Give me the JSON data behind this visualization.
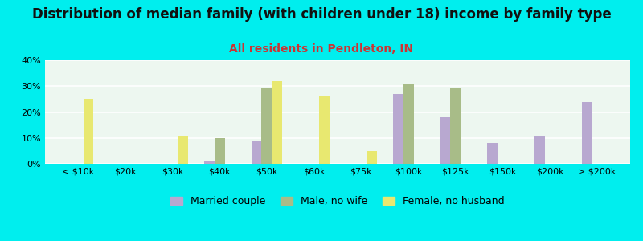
{
  "title": "Distribution of median family (with children under 18) income by family type",
  "subtitle": "All residents in Pendleton, IN",
  "categories": [
    "< $10k",
    "$20k",
    "$30k",
    "$40k",
    "$50k",
    "$60k",
    "$75k",
    "$100k",
    "$125k",
    "$150k",
    "$200k",
    "> $200k"
  ],
  "married_couple": [
    0,
    0,
    0,
    1,
    9,
    0,
    0,
    27,
    18,
    8,
    11,
    24
  ],
  "male_no_wife": [
    0,
    0,
    0,
    10,
    29,
    0,
    0,
    31,
    29,
    0,
    0,
    0
  ],
  "female_no_husb": [
    25,
    0,
    11,
    0,
    32,
    26,
    5,
    0,
    0,
    0,
    0,
    0
  ],
  "married_color": "#b8a8d0",
  "male_color": "#a8bc88",
  "female_color": "#e8e870",
  "bg_color": "#00eeee",
  "ylim": [
    0,
    40
  ],
  "yticks": [
    0,
    10,
    20,
    30,
    40
  ],
  "bar_width": 0.22,
  "title_fontsize": 12,
  "subtitle_fontsize": 10,
  "legend_fontsize": 9,
  "tick_fontsize": 8
}
